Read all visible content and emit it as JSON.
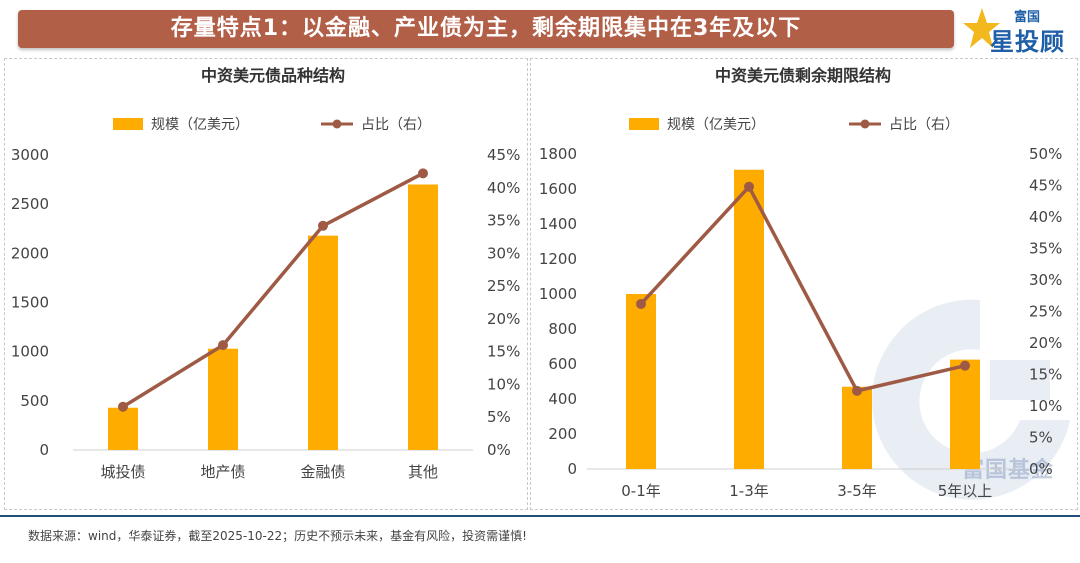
{
  "banner": {
    "title": "存量特点1：以金融、产业债为主，剩余期限集中在3年及以下"
  },
  "logo": {
    "small_text": "富国",
    "big_text": "星投顾"
  },
  "watermark": {
    "text": "富国基金"
  },
  "footer": {
    "note": "数据来源：wind，华泰证券，截至2025-10-22；历史不预示未来，基金有风险，投资需谨慎!"
  },
  "colors": {
    "bar": "#ffac00",
    "line": "#9e5a45",
    "banner": "#b25f48",
    "axis_text": "#444444"
  },
  "chart_data": [
    {
      "type": "bar+line",
      "title": "中资美元债品种结构",
      "categories": [
        "城投债",
        "地产债",
        "金融债",
        "其他"
      ],
      "series": [
        {
          "name": "规模（亿美元）",
          "type": "bar",
          "axis": "left",
          "values": [
            430,
            1030,
            2180,
            2700
          ]
        },
        {
          "name": "占比（右）",
          "type": "line",
          "axis": "right",
          "values": [
            6.6,
            16.0,
            34.2,
            42.2
          ]
        }
      ],
      "y_left": {
        "min": 0,
        "max": 3000,
        "step": 500,
        "ticks": [
          "0",
          "500",
          "1000",
          "1500",
          "2000",
          "2500",
          "3000"
        ]
      },
      "y_right": {
        "min": 0,
        "max": 45,
        "step": 5,
        "ticks": [
          "0%",
          "5%",
          "10%",
          "15%",
          "20%",
          "25%",
          "30%",
          "35%",
          "40%",
          "45%"
        ]
      },
      "legend": "top-center",
      "grid": false
    },
    {
      "type": "bar+line",
      "title": "中资美元债剩余期限结构",
      "categories": [
        "0-1年",
        "1-3年",
        "3-5年",
        "5年以上"
      ],
      "series": [
        {
          "name": "规模（亿美元）",
          "type": "bar",
          "axis": "left",
          "values": [
            1000,
            1710,
            470,
            625
          ]
        },
        {
          "name": "占比（右）",
          "type": "line",
          "axis": "right",
          "values": [
            26.2,
            44.8,
            12.4,
            16.4
          ]
        }
      ],
      "y_left": {
        "min": 0,
        "max": 1800,
        "step": 200,
        "ticks": [
          "0",
          "200",
          "400",
          "600",
          "800",
          "1000",
          "1200",
          "1400",
          "1600",
          "1800"
        ]
      },
      "y_right": {
        "min": 0,
        "max": 50,
        "step": 5,
        "ticks": [
          "0%",
          "5%",
          "10%",
          "15%",
          "20%",
          "25%",
          "30%",
          "35%",
          "40%",
          "45%",
          "50%"
        ]
      },
      "legend": "top-center",
      "grid": false
    }
  ]
}
